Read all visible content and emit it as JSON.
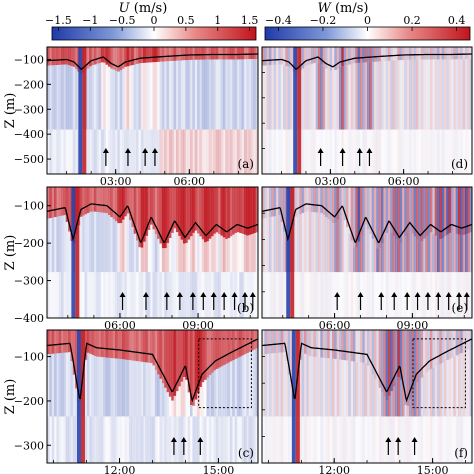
{
  "figure": {
    "colorbars": [
      {
        "symbol": "U",
        "unit": "(m/s)",
        "ticks": [
          "−1.5",
          "−1",
          "−0.5",
          "0",
          "0.5",
          "1",
          "1.5"
        ],
        "range": [
          -1.6,
          1.6
        ]
      },
      {
        "symbol": "W",
        "unit": "(m/s)",
        "ticks": [
          "−0.4",
          "−0.2",
          "0",
          "0.2",
          "0.4"
        ],
        "range": [
          -0.46,
          0.46
        ]
      }
    ],
    "ylabel": "Z (m)",
    "colors": {
      "negative": "#1f3aa8",
      "positive": "#c0141c",
      "neutral": "#ffffff",
      "line": "#000000"
    }
  },
  "chart_data": [
    {
      "type": "heatmap",
      "panel_label": "(a)",
      "variable": "U",
      "x_ticks": [
        "03:00",
        "06:00"
      ],
      "x_tick_hours": [
        3,
        6
      ],
      "x_range_hours": [
        0.2,
        8.8
      ],
      "y_ticks": [
        "−100",
        "−200",
        "−300",
        "−400",
        "−500"
      ],
      "y_tick_values": [
        -100,
        -200,
        -300,
        -400,
        -500
      ],
      "ylim": [
        -560,
        -50
      ],
      "interface_depth": {
        "x": [
          0.2,
          1.0,
          1.3,
          1.6,
          2.0,
          2.5,
          2.8,
          3.1,
          3.4,
          4.0,
          5.0,
          6.0,
          7.0,
          8.0,
          8.8
        ],
        "y": [
          -105,
          -100,
          -110,
          -140,
          -105,
          -90,
          -115,
          -130,
          -110,
          -95,
          -88,
          -82,
          -80,
          -80,
          -78
        ]
      },
      "arrows_hours": [
        2.6,
        3.5,
        4.2,
        4.6
      ],
      "dashed_box": null
    },
    {
      "type": "heatmap",
      "panel_label": "(b)",
      "variable": "U",
      "x_ticks": [
        "06:00",
        "09:00"
      ],
      "x_tick_hours": [
        6,
        9
      ],
      "x_range_hours": [
        3.2,
        11.3
      ],
      "y_ticks": [
        "−100",
        "−200",
        "−300",
        "−400"
      ],
      "y_tick_values": [
        -100,
        -200,
        -300,
        -400
      ],
      "ylim": [
        -400,
        -50
      ],
      "interface_depth": {
        "x": [
          3.2,
          3.9,
          4.2,
          4.5,
          4.9,
          5.5,
          6.0,
          6.3,
          6.8,
          7.2,
          7.7,
          8.1,
          8.5,
          8.9,
          9.3,
          9.7,
          10.1,
          10.5,
          10.9,
          11.3
        ],
        "y": [
          -115,
          -105,
          -190,
          -110,
          -95,
          -100,
          -130,
          -100,
          -200,
          -130,
          -200,
          -140,
          -185,
          -145,
          -180,
          -150,
          -170,
          -150,
          -160,
          -150
        ],
        "dips_hours": [
          4.25,
          6.9,
          7.7,
          8.5,
          9.3,
          10.1,
          10.9
        ]
      },
      "arrows_hours": [
        6.1,
        7.0,
        7.8,
        8.3,
        8.8,
        9.2,
        9.6,
        10.0,
        10.4,
        10.8,
        11.1
      ],
      "dashed_box": null
    },
    {
      "type": "heatmap",
      "panel_label": "(c)",
      "variable": "U",
      "x_ticks": [
        "12:00",
        "15:00"
      ],
      "x_tick_hours": [
        12,
        15
      ],
      "x_range_hours": [
        9.8,
        16.2
      ],
      "y_ticks": [
        "−100",
        "−200",
        "−300"
      ],
      "y_tick_values": [
        -100,
        -200,
        -300
      ],
      "ylim": [
        -340,
        -40
      ],
      "interface_depth": {
        "x": [
          9.8,
          10.5,
          10.8,
          11.0,
          11.3,
          12.0,
          13.0,
          13.6,
          14.0,
          14.2,
          14.5,
          14.9,
          15.4,
          16.2
        ],
        "y": [
          -75,
          -70,
          -200,
          -70,
          -80,
          -85,
          -95,
          -180,
          -120,
          -200,
          -140,
          -110,
          -90,
          -60
        ]
      },
      "arrows_hours": [
        13.65,
        13.95,
        14.45
      ],
      "dashed_box": {
        "x": [
          14.4,
          16.0
        ],
        "y": [
          -60,
          -215
        ]
      }
    },
    {
      "type": "heatmap",
      "panel_label": "(d)",
      "variable": "W",
      "x_ticks": [
        "03:00",
        "06:00"
      ],
      "x_tick_hours": [
        3,
        6
      ],
      "x_range_hours": [
        0.2,
        8.8
      ],
      "y_ticks": [],
      "ylim": [
        -560,
        -50
      ],
      "interface_depth": {
        "x": [
          0.2,
          1.0,
          1.3,
          1.6,
          2.0,
          2.5,
          2.8,
          3.1,
          3.4,
          4.0,
          5.0,
          6.0,
          7.0,
          8.0,
          8.8
        ],
        "y": [
          -105,
          -100,
          -110,
          -140,
          -105,
          -90,
          -115,
          -130,
          -110,
          -95,
          -88,
          -82,
          -80,
          -80,
          -78
        ]
      },
      "arrows_hours": [
        2.6,
        3.5,
        4.2,
        4.6
      ],
      "dashed_box": null
    },
    {
      "type": "heatmap",
      "panel_label": "(e)",
      "variable": "W",
      "x_ticks": [
        "06:00",
        "09:00"
      ],
      "x_tick_hours": [
        6,
        9
      ],
      "x_range_hours": [
        3.2,
        11.3
      ],
      "y_ticks": [],
      "ylim": [
        -400,
        -50
      ],
      "interface_depth": {
        "x": [
          3.2,
          3.9,
          4.2,
          4.5,
          4.9,
          5.5,
          6.0,
          6.3,
          6.8,
          7.2,
          7.7,
          8.1,
          8.5,
          8.9,
          9.3,
          9.7,
          10.1,
          10.5,
          10.9,
          11.3
        ],
        "y": [
          -115,
          -105,
          -190,
          -110,
          -95,
          -100,
          -130,
          -100,
          -200,
          -130,
          -200,
          -140,
          -185,
          -145,
          -180,
          -150,
          -170,
          -150,
          -160,
          -150
        ],
        "dips_hours": [
          4.25,
          6.9,
          7.7,
          8.5,
          9.3,
          10.1,
          10.9
        ]
      },
      "arrows_hours": [
        6.1,
        7.0,
        7.8,
        8.3,
        8.8,
        9.2,
        9.6,
        10.0,
        10.4,
        10.8,
        11.1
      ],
      "dashed_box": null
    },
    {
      "type": "heatmap",
      "panel_label": "(f)",
      "variable": "W",
      "x_ticks": [
        "12:00",
        "15:00"
      ],
      "x_tick_hours": [
        12,
        15
      ],
      "x_range_hours": [
        9.8,
        16.2
      ],
      "y_ticks": [],
      "ylim": [
        -340,
        -40
      ],
      "interface_depth": {
        "x": [
          9.8,
          10.5,
          10.8,
          11.0,
          11.3,
          12.0,
          13.0,
          13.6,
          14.0,
          14.2,
          14.5,
          14.9,
          15.4,
          16.2
        ],
        "y": [
          -75,
          -70,
          -200,
          -70,
          -80,
          -85,
          -95,
          -180,
          -120,
          -200,
          -140,
          -110,
          -90,
          -60
        ]
      },
      "arrows_hours": [
        13.65,
        13.95,
        14.45
      ],
      "dashed_box": {
        "x": [
          14.4,
          16.0
        ],
        "y": [
          -60,
          -215
        ]
      }
    }
  ]
}
